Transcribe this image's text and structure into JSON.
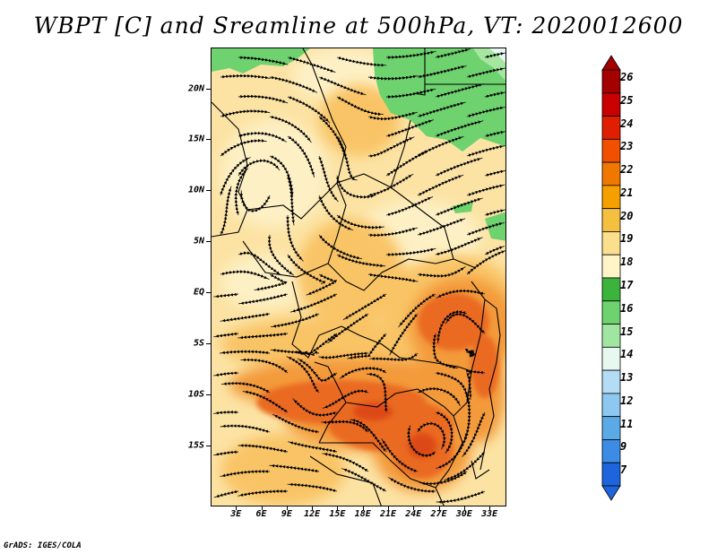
{
  "title": "WBPT [C] and Sreamline at 500hPa, VT: 2020012600",
  "credit": "GrADS: IGES/COLA",
  "map": {
    "lon_range": [
      0,
      35
    ],
    "lat_range": [
      -21,
      24
    ],
    "lat_labels": [
      {
        "lat": 20,
        "label": "20N"
      },
      {
        "lat": 15,
        "label": "15N"
      },
      {
        "lat": 10,
        "label": "10N"
      },
      {
        "lat": 5,
        "label": "5N"
      },
      {
        "lat": 0,
        "label": "EQ"
      },
      {
        "lat": -5,
        "label": "5S"
      },
      {
        "lat": -10,
        "label": "10S"
      },
      {
        "lat": -15,
        "label": "15S"
      }
    ],
    "lon_labels": [
      {
        "lon": 3,
        "label": "3E"
      },
      {
        "lon": 6,
        "label": "6E"
      },
      {
        "lon": 9,
        "label": "9E"
      },
      {
        "lon": 12,
        "label": "12E"
      },
      {
        "lon": 15,
        "label": "15E"
      },
      {
        "lon": 18,
        "label": "18E"
      },
      {
        "lon": 21,
        "label": "21E"
      },
      {
        "lon": 24,
        "label": "24E"
      },
      {
        "lon": 27,
        "label": "27E"
      },
      {
        "lon": 30,
        "label": "30E"
      },
      {
        "lon": 33,
        "label": "33E"
      }
    ]
  },
  "colorbar": {
    "levels": [
      "26",
      "25",
      "24",
      "23",
      "22",
      "21",
      "20",
      "19",
      "18",
      "17",
      "16",
      "15",
      "14",
      "13",
      "12",
      "11",
      "9",
      "7"
    ],
    "colors": [
      "#a50000",
      "#c80000",
      "#e01e00",
      "#f05000",
      "#f07800",
      "#f5a000",
      "#f5c040",
      "#fae08c",
      "#fff5c8",
      "#3cb43c",
      "#6ed26e",
      "#a0e6a0",
      "#e6f8f0",
      "#b4dcf5",
      "#8cc8f0",
      "#5aaae6",
      "#3c8ce6",
      "#1e64dc"
    ]
  },
  "field_colors": {
    "base": "#fce3a4",
    "pale": "#fdf0c4",
    "warm": "#f9c466",
    "orange": "#f39a3a",
    "deep": "#ea6a22",
    "core": "#dd4a12",
    "green": "#6ed26e",
    "lightgreen": "#a6e6a0",
    "paleblue": "#e6f8f0"
  }
}
